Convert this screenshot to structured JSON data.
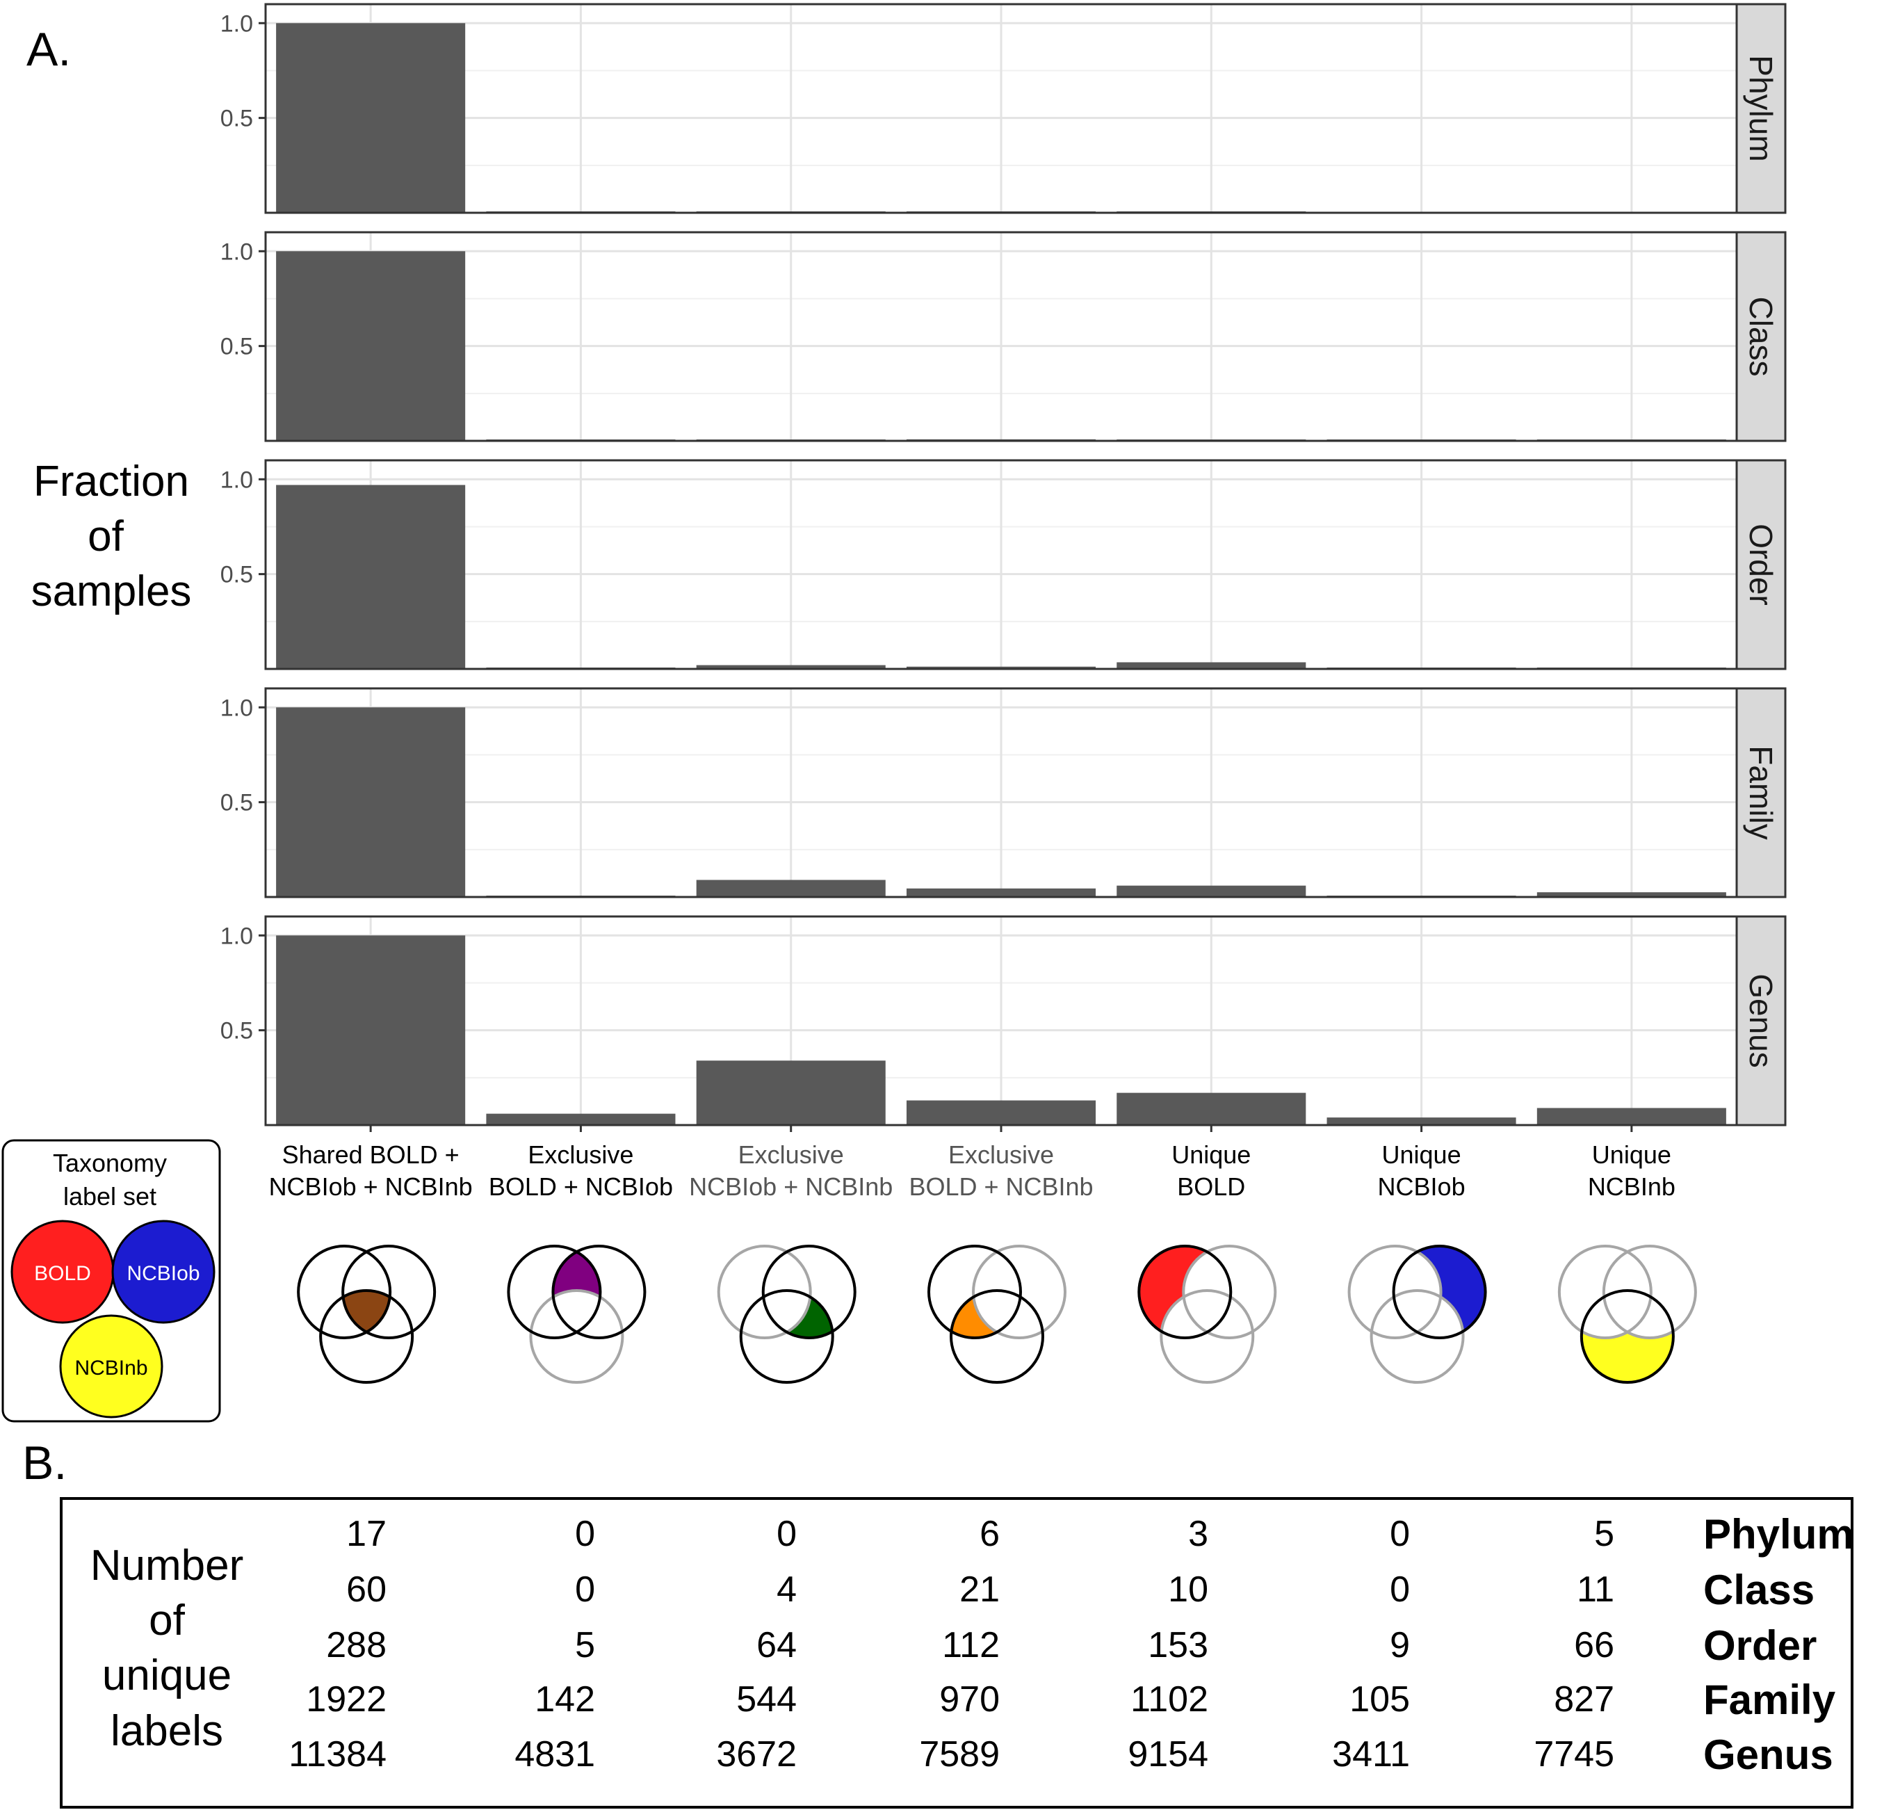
{
  "panel_a_label": "A.",
  "panel_b_label": "B.",
  "y_axis_label_lines": [
    "Fraction",
    "of",
    "samples"
  ],
  "legend": {
    "title_lines": [
      "Taxonomy",
      "label set"
    ],
    "items": [
      {
        "label": "BOLD",
        "color": "#ff1f1f"
      },
      {
        "label": "NCBIob",
        "color": "#1c1cd0"
      },
      {
        "label": "NCBInb",
        "color": "#ffff1f"
      }
    ]
  },
  "venn_fills": [
    "#8b4513",
    "#800080",
    "#006400",
    "#ff8c00",
    "#ff1f1f",
    "#1c1cd0",
    "#ffff1f"
  ],
  "chart_data": {
    "type": "bar",
    "categories": [
      [
        "Shared BOLD +",
        "NCBIob + NCBInb"
      ],
      [
        "Exclusive",
        "BOLD + NCBIob"
      ],
      [
        "Exclusive",
        "NCBIob + NCBInb"
      ],
      [
        "Exclusive",
        "BOLD + NCBInb"
      ],
      [
        "Unique",
        "BOLD"
      ],
      [
        "Unique",
        "NCBIob"
      ],
      [
        "Unique",
        "NCBInb"
      ]
    ],
    "category_label_colors": [
      "#000000",
      "#000000",
      "#555555",
      "#555555",
      "#000000",
      "#000000",
      "#000000"
    ],
    "bar_color": "#595959",
    "ylim": [
      0,
      1.1
    ],
    "yticks": [
      0.5,
      1.0
    ],
    "ytick_labels": [
      "0.5",
      "1.0"
    ],
    "grid": true,
    "facets": [
      {
        "name": "Phylum",
        "values": [
          1.0,
          0.003,
          0.003,
          0.006,
          0.003,
          0.0,
          0.0
        ]
      },
      {
        "name": "Class",
        "values": [
          1.0,
          0.002,
          0.003,
          0.008,
          0.004,
          0.002,
          0.004
        ]
      },
      {
        "name": "Order",
        "values": [
          0.97,
          0.004,
          0.02,
          0.012,
          0.035,
          0.003,
          0.007
        ]
      },
      {
        "name": "Family",
        "values": [
          1.0,
          0.006,
          0.09,
          0.045,
          0.06,
          0.005,
          0.025
        ]
      },
      {
        "name": "Genus",
        "values": [
          1.0,
          0.06,
          0.34,
          0.13,
          0.17,
          0.04,
          0.09
        ]
      }
    ]
  },
  "table": {
    "row_header_lines": [
      "Number",
      "of",
      "unique",
      "labels"
    ],
    "rows": [
      {
        "level": "Phylum",
        "values": [
          "17",
          "0",
          "0",
          "6",
          "3",
          "0",
          "5"
        ]
      },
      {
        "level": "Class",
        "values": [
          "60",
          "0",
          "4",
          "21",
          "10",
          "0",
          "11"
        ]
      },
      {
        "level": "Order",
        "values": [
          "288",
          "5",
          "64",
          "112",
          "153",
          "9",
          "66"
        ]
      },
      {
        "level": "Family",
        "values": [
          "1922",
          "142",
          "544",
          "970",
          "1102",
          "105",
          "827"
        ]
      },
      {
        "level": "Genus",
        "values": [
          "11384",
          "4831",
          "3672",
          "7589",
          "9154",
          "3411",
          "7745"
        ]
      }
    ]
  }
}
